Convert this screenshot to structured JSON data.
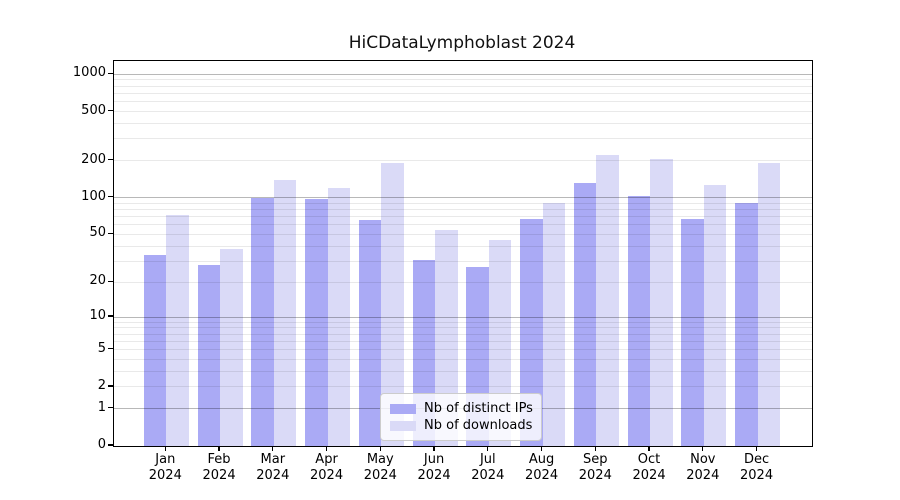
{
  "chart_data": {
    "type": "bar",
    "title": "HiCDataLymphoblast 2024",
    "xlabel": "",
    "ylabel": "",
    "x_year": "2024",
    "categories": [
      "Jan",
      "Feb",
      "Mar",
      "Apr",
      "May",
      "Jun",
      "Jul",
      "Aug",
      "Sep",
      "Oct",
      "Nov",
      "Dec"
    ],
    "series": [
      {
        "name": "Nb of distinct IPs",
        "color": "#aaaaf5",
        "values": [
          34,
          28,
          100,
          97,
          66,
          31,
          27,
          67,
          132,
          103,
          67,
          90
        ]
      },
      {
        "name": "Nb of downloads",
        "color": "#dadaf7",
        "values": [
          72,
          38,
          139,
          120,
          190,
          54,
          45,
          91,
          222,
          205,
          128,
          190
        ]
      }
    ],
    "yticks": [
      0,
      1,
      2,
      5,
      10,
      20,
      50,
      100,
      200,
      500,
      1000
    ],
    "y_scale": "log10(value+1)",
    "ylim": [
      0,
      1000
    ],
    "grid": "on",
    "grid_major_at": [
      1,
      10,
      100,
      1000
    ],
    "legend_position": "lower center",
    "colors": {
      "grid_major": "#b6b6b6",
      "grid_minor": "#e9e9e9",
      "axis": "#000000",
      "background": "#ffffff",
      "legend_border": "#cccccc",
      "text": "#000000"
    }
  }
}
